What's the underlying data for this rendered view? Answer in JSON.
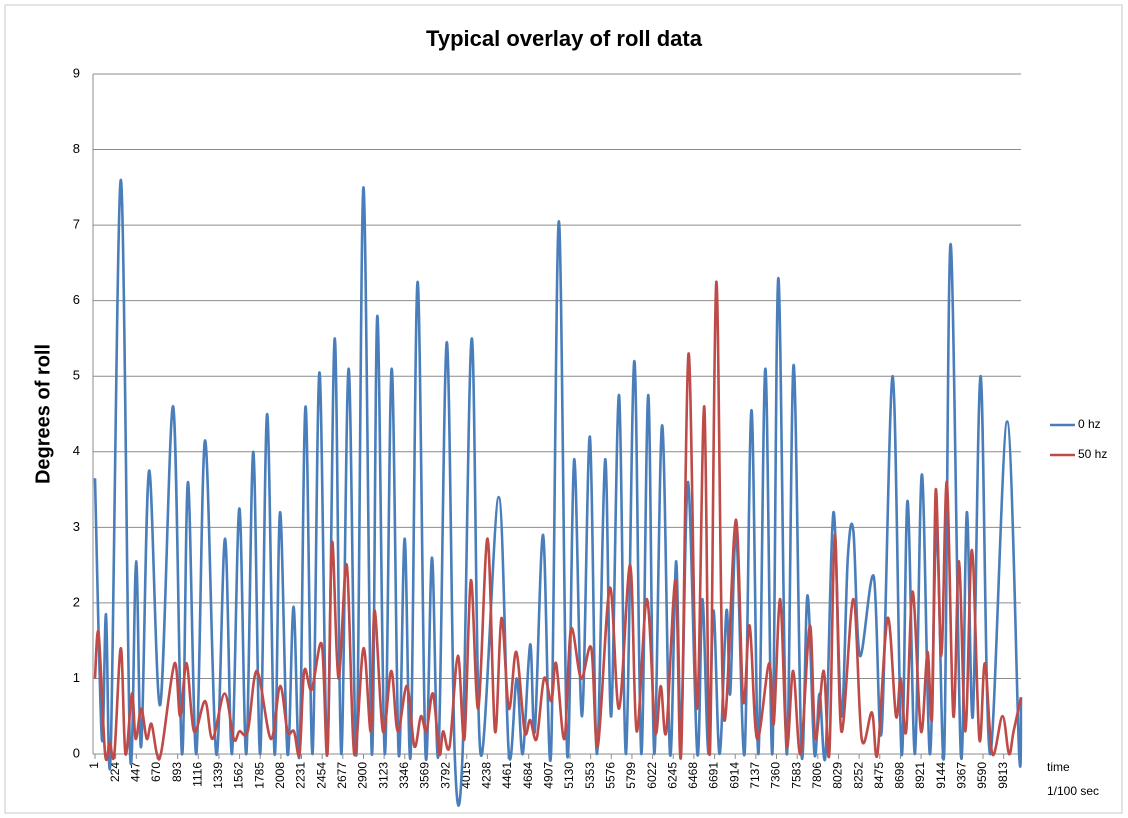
{
  "chart_data": {
    "type": "line",
    "title": "Typical overlay of roll data",
    "y_label": "Degrees of roll",
    "x_label": [
      "time",
      "1/100 sec"
    ],
    "xlim": [
      1,
      10000
    ],
    "ylim": [
      0,
      9
    ],
    "yticks": [
      0,
      1,
      2,
      3,
      4,
      5,
      6,
      7,
      8,
      9
    ],
    "xticks": [
      1,
      224,
      447,
      670,
      893,
      1116,
      1339,
      1562,
      1785,
      2008,
      2231,
      2454,
      2677,
      2900,
      3123,
      3346,
      3569,
      3792,
      4015,
      4238,
      4461,
      4684,
      4907,
      5130,
      5353,
      5576,
      5799,
      6022,
      6245,
      6468,
      6691,
      6914,
      7137,
      7360,
      7583,
      7806,
      8029,
      8252,
      8475,
      8698,
      8921,
      9144,
      9367,
      9590,
      9813
    ],
    "grid": true,
    "legend": "right",
    "series": [
      {
        "name": "0 hz",
        "color": "#4a7ebb",
        "x": [
          1,
          75,
          120,
          170,
          280,
          380,
          445,
          500,
          585,
          705,
          845,
          940,
          1005,
          1095,
          1190,
          1310,
          1405,
          1480,
          1560,
          1635,
          1710,
          1785,
          1860,
          1940,
          2000,
          2080,
          2145,
          2210,
          2275,
          2350,
          2425,
          2510,
          2590,
          2660,
          2740,
          2825,
          2900,
          2990,
          3050,
          3130,
          3205,
          3280,
          3345,
          3410,
          3485,
          3570,
          3640,
          3710,
          3800,
          3885,
          3970,
          4070,
          4165,
          4360,
          4470,
          4555,
          4620,
          4700,
          4750,
          4840,
          4925,
          5010,
          5100,
          5175,
          5260,
          5345,
          5420,
          5510,
          5575,
          5660,
          5735,
          5825,
          5900,
          5975,
          6040,
          6125,
          6210,
          6275,
          6330,
          6405,
          6505,
          6560,
          6625,
          6680,
          6745,
          6820,
          6860,
          6925,
          7015,
          7090,
          7165,
          7240,
          7315,
          7380,
          7470,
          7545,
          7630,
          7695,
          7770,
          7825,
          7890,
          7975,
          8060,
          8130,
          8190,
          8260,
          8410,
          8495,
          8615,
          8710,
          8775,
          8855,
          8930,
          9015,
          9090,
          9170,
          9240,
          9350,
          9415,
          9480,
          9565,
          9665,
          9850,
          9980,
          10000
        ],
        "values": [
          3.65,
          0.2,
          1.85,
          0,
          7.6,
          0,
          2.55,
          0.1,
          3.75,
          0.65,
          4.6,
          0,
          3.6,
          0,
          4.15,
          0,
          2.85,
          0,
          3.25,
          0,
          4.0,
          0,
          4.5,
          0,
          3.2,
          0,
          1.95,
          0,
          4.6,
          0,
          5.05,
          0,
          5.5,
          0,
          5.1,
          0,
          7.5,
          0,
          5.8,
          0,
          5.1,
          0,
          2.85,
          0,
          6.25,
          0,
          2.6,
          0,
          5.45,
          0,
          0,
          5.5,
          0,
          3.4,
          0,
          1.0,
          0,
          1.45,
          0.3,
          2.9,
          0,
          7.05,
          0,
          3.9,
          0.5,
          4.2,
          0,
          3.9,
          0.5,
          4.75,
          0,
          5.2,
          0,
          4.75,
          0,
          4.35,
          0,
          2.55,
          0.3,
          3.6,
          0,
          2.05,
          0,
          1.9,
          0,
          1.9,
          0.8,
          2.95,
          0,
          4.55,
          0,
          5.1,
          0,
          6.3,
          0,
          5.15,
          0,
          2.1,
          0,
          0.8,
          0,
          3.2,
          0.5,
          2.6,
          2.95,
          1.3,
          2.35,
          0.3,
          5.0,
          0,
          3.35,
          0,
          3.7,
          0,
          3.0,
          0,
          6.75,
          0,
          3.2,
          0.5,
          5.0,
          0,
          4.4,
          0,
          0.75
        ]
      },
      {
        "name": "50 hz",
        "color": "#be4b48",
        "x": [
          1,
          40,
          110,
          160,
          210,
          280,
          330,
          400,
          440,
          500,
          560,
          610,
          670,
          720,
          860,
          920,
          990,
          1070,
          1190,
          1270,
          1400,
          1500,
          1560,
          1650,
          1750,
          1900,
          2000,
          2080,
          2150,
          2210,
          2260,
          2340,
          2450,
          2510,
          2560,
          2630,
          2720,
          2800,
          2900,
          2980,
          3020,
          3110,
          3200,
          3270,
          3370,
          3450,
          3520,
          3580,
          3650,
          3720,
          3760,
          3830,
          3920,
          3990,
          4060,
          4140,
          4240,
          4320,
          4390,
          4470,
          4550,
          4640,
          4700,
          4770,
          4850,
          4930,
          4980,
          5070,
          5140,
          5250,
          5360,
          5430,
          5560,
          5660,
          5780,
          5850,
          5960,
          6050,
          6110,
          6170,
          6270,
          6330,
          6410,
          6500,
          6580,
          6640,
          6710,
          6790,
          6920,
          7000,
          7070,
          7150,
          7280,
          7330,
          7400,
          7470,
          7540,
          7620,
          7720,
          7780,
          7870,
          7930,
          7990,
          8060,
          8190,
          8280,
          8390,
          8450,
          8560,
          8650,
          8700,
          8760,
          8830,
          8920,
          8990,
          9040,
          9080,
          9140,
          9200,
          9270,
          9330,
          9400,
          9470,
          9550,
          9610,
          9690,
          9800,
          9870,
          9920,
          10000
        ],
        "values": [
          1.0,
          1.6,
          0,
          0.15,
          0,
          1.4,
          0,
          0.8,
          0.2,
          0.6,
          0.2,
          0.4,
          0,
          0.05,
          1.2,
          0.5,
          1.2,
          0.3,
          0.7,
          0.2,
          0.8,
          0.2,
          0.3,
          0.3,
          1.1,
          0.2,
          0.9,
          0.3,
          0.3,
          0,
          1.1,
          0.85,
          1.45,
          0,
          2.8,
          1.0,
          2.5,
          0,
          1.4,
          0.3,
          1.9,
          0.3,
          1.1,
          0.3,
          0.9,
          0.1,
          0.5,
          0.3,
          0.8,
          0,
          0.3,
          0.1,
          1.3,
          0.2,
          2.3,
          0.6,
          2.85,
          0.3,
          1.8,
          0.6,
          1.35,
          0.3,
          0.45,
          0.2,
          1.0,
          0.7,
          1.2,
          0.2,
          1.65,
          1.0,
          1.4,
          0.1,
          2.2,
          0.6,
          2.5,
          0.3,
          2.05,
          0.3,
          0.9,
          0.3,
          2.3,
          0,
          5.3,
          0.6,
          4.6,
          0,
          6.25,
          0.5,
          3.1,
          0.7,
          1.7,
          0.2,
          1.2,
          0.4,
          2.05,
          0.1,
          1.1,
          0,
          1.7,
          0.2,
          1.1,
          0,
          2.9,
          0.3,
          2.05,
          0.2,
          0.55,
          0,
          1.8,
          0.5,
          1.0,
          0.3,
          2.15,
          0.3,
          1.35,
          0.5,
          3.5,
          1.3,
          3.6,
          0.5,
          2.55,
          0.3,
          2.7,
          0.2,
          1.2,
          0,
          0.5,
          0,
          0.3,
          0.75
        ]
      }
    ]
  }
}
